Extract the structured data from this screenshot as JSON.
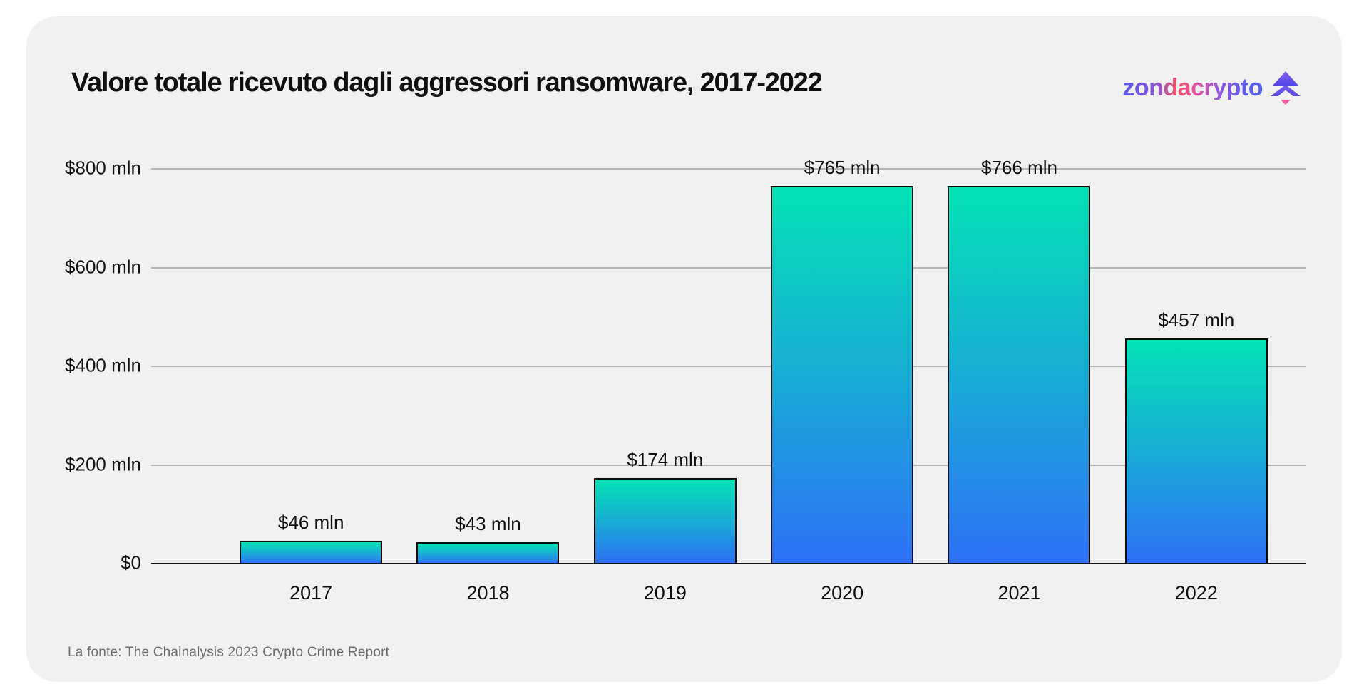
{
  "page": {
    "background": "#ffffff",
    "card_background": "#f1f1f1"
  },
  "header": {
    "title": "Valore totale ricevuto dagli aggressori ransomware, 2017-2022",
    "logo": {
      "text": "zondacrypto",
      "icon": "tree-arrow-up-icon"
    }
  },
  "footer": {
    "source": "La fonte: The Chainalysis 2023 Crypto Crime Report"
  },
  "colors": {
    "bar_gradient_top": "#04e3b5",
    "bar_gradient_mid": "#19aad5",
    "bar_gradient_bottom": "#2e70f6",
    "bar_border": "#0b0b0b",
    "gridline": "#b4b4b4",
    "axis_line": "#121212",
    "text_primary": "#101010",
    "text_muted": "#6e6e6e",
    "logo_gradient_start": "#5659e9",
    "logo_gradient_pink": "#f05168",
    "logo_gradient_end": "#5663ee",
    "logo_icon_purple": "#6a55ee",
    "logo_icon_pink": "#ec5f9f"
  },
  "chart_data": {
    "type": "bar",
    "title": "Valore totale ricevuto dagli aggressori ransomware, 2017-2022",
    "categories": [
      "2017",
      "2018",
      "2019",
      "2020",
      "2021",
      "2022"
    ],
    "values": [
      46,
      43,
      174,
      765,
      766,
      457
    ],
    "value_labels": [
      "$46 mln",
      "$43 mln",
      "$174 mln",
      "$765 mln",
      "$766 mln",
      "$457 mln"
    ],
    "xlabel": "",
    "ylabel": "",
    "ylim": [
      0,
      800
    ],
    "y_ticks": [
      {
        "value": 800,
        "label": "$800 mln"
      },
      {
        "value": 600,
        "label": "$600 mln"
      },
      {
        "value": 400,
        "label": "$400 mln"
      },
      {
        "value": 200,
        "label": "$200 mln"
      },
      {
        "value": 0,
        "label": "$0"
      }
    ],
    "grid": true,
    "legend": false,
    "source_note": "La fonte: The Chainalysis 2023 Crypto Crime Report"
  }
}
